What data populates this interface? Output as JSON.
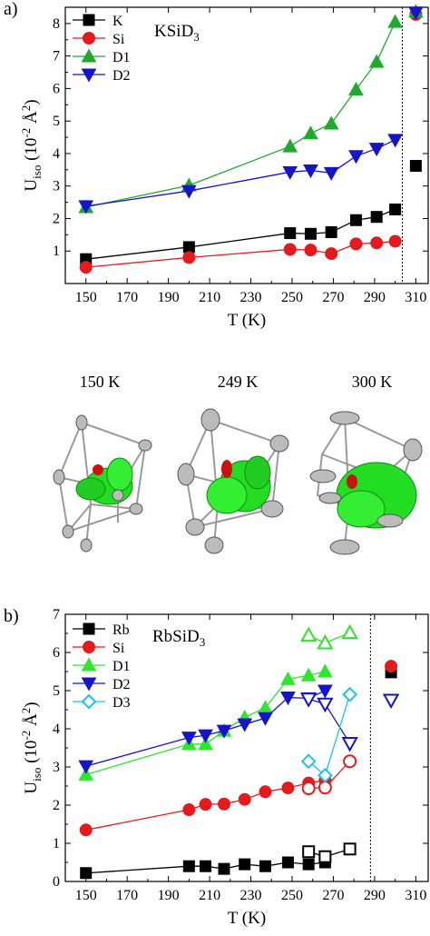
{
  "chart_data": [
    {
      "type": "line",
      "panel_label": "a)",
      "compound_label": "KSiD",
      "compound_sub": "3",
      "xlabel": "T (K)",
      "ylabel_main": "U",
      "ylabel_sub": "iso",
      "ylabel_paren": " (10",
      "ylabel_exp": "-2",
      "ylabel_unit": " Å",
      "ylabel_unit_exp": "2",
      "ylabel_close": ")",
      "xticks": [
        "150",
        "170",
        "190",
        "210",
        "230",
        "250",
        "270",
        "290",
        "310"
      ],
      "yticks": [
        "1",
        "2",
        "3",
        "4",
        "5",
        "6",
        "7",
        "8"
      ],
      "xlim": [
        140,
        316
      ],
      "ylim": [
        0,
        8.5
      ],
      "vline_x": 303.5,
      "grid": false,
      "legend_position": "top-left",
      "series": [
        {
          "name": "K",
          "color": "#000000",
          "marker": "square",
          "filled": true,
          "x": [
            150,
            200,
            249,
            259,
            269,
            281,
            291,
            300
          ],
          "y": [
            0.75,
            1.12,
            1.55,
            1.53,
            1.58,
            1.95,
            2.05,
            2.28
          ],
          "extra": [
            {
              "x": 310,
              "y": 3.62
            }
          ]
        },
        {
          "name": "Si",
          "color": "#e41a1c",
          "marker": "circle",
          "filled": true,
          "x": [
            150,
            200,
            249,
            259,
            269,
            281,
            291,
            300
          ],
          "y": [
            0.5,
            0.8,
            1.05,
            1.03,
            0.92,
            1.22,
            1.25,
            1.3
          ],
          "extra": [
            {
              "x": 310,
              "y": 8.28
            }
          ]
        },
        {
          "name": "D1",
          "color": "#1faa2e",
          "marker": "triangle-up",
          "filled": true,
          "x": [
            150,
            200,
            249,
            259,
            269,
            281,
            291,
            300
          ],
          "y": [
            2.35,
            3.02,
            4.22,
            4.62,
            4.92,
            5.97,
            6.82,
            8.05
          ],
          "extra": [
            {
              "x": 310,
              "y": 8.36
            }
          ]
        },
        {
          "name": "D2",
          "color": "#1414c8",
          "marker": "triangle-down",
          "filled": true,
          "x": [
            150,
            200,
            249,
            259,
            269,
            281,
            291,
            300
          ],
          "y": [
            2.38,
            2.85,
            3.43,
            3.48,
            3.4,
            3.92,
            4.15,
            4.42
          ],
          "extra": [
            {
              "x": 310,
              "y": 8.34
            }
          ]
        }
      ]
    },
    {
      "type": "line",
      "panel_label": "b)",
      "compound_label": "RbSiD",
      "compound_sub": "3",
      "xlabel": "T (K)",
      "ylabel_main": "U",
      "ylabel_sub": "iso",
      "ylabel_paren": " (10",
      "ylabel_exp": "-2",
      "ylabel_unit": " Å",
      "ylabel_unit_exp": "2",
      "ylabel_close": ")",
      "xticks": [
        "150",
        "170",
        "190",
        "210",
        "230",
        "250",
        "270",
        "290",
        "310"
      ],
      "yticks": [
        "0",
        "1",
        "2",
        "3",
        "4",
        "5",
        "6",
        "7"
      ],
      "xlim": [
        140,
        316
      ],
      "ylim": [
        0,
        7
      ],
      "vline_x": 288,
      "grid": false,
      "legend_position": "top-left",
      "series": [
        {
          "name": "Rb",
          "color": "#000000",
          "marker": "square",
          "filled": true,
          "x": [
            150,
            200,
            208,
            217,
            227,
            237,
            248,
            258,
            266
          ],
          "y": [
            0.22,
            0.4,
            0.4,
            0.33,
            0.45,
            0.4,
            0.5,
            0.45,
            0.5
          ],
          "open_x": [
            258,
            266,
            278
          ],
          "open_y": [
            0.78,
            0.65,
            0.85
          ],
          "extra": [
            {
              "x": 298,
              "y": 5.48
            }
          ]
        },
        {
          "name": "Si",
          "color": "#e41a1c",
          "marker": "circle",
          "filled": true,
          "x": [
            150,
            200,
            208,
            217,
            227,
            237,
            248,
            258,
            266
          ],
          "y": [
            1.35,
            1.88,
            2.02,
            2.03,
            2.15,
            2.35,
            2.45,
            2.58,
            2.65
          ],
          "open_x": [
            258,
            266,
            278
          ],
          "open_y": [
            2.44,
            2.46,
            3.15
          ],
          "extra": [
            {
              "x": 298,
              "y": 5.64
            }
          ]
        },
        {
          "name": "D1",
          "color": "#2ee62e",
          "marker": "triangle-up",
          "filled": true,
          "x": [
            150,
            200,
            208,
            217,
            227,
            237,
            248,
            258,
            266
          ],
          "y": [
            2.8,
            3.6,
            3.6,
            3.95,
            4.3,
            4.55,
            5.3,
            5.4,
            5.5
          ],
          "open_x": [
            258,
            266,
            278
          ],
          "open_y": [
            6.45,
            6.25,
            6.52
          ],
          "extra": []
        },
        {
          "name": "D2",
          "color": "#1414c8",
          "marker": "triangle-down",
          "filled": true,
          "x": [
            150,
            200,
            208,
            217,
            227,
            237,
            248,
            258,
            266
          ],
          "y": [
            3.02,
            3.77,
            3.83,
            3.95,
            4.12,
            4.28,
            4.82,
            4.8,
            5.0
          ],
          "open_x": [
            258,
            266,
            278
          ],
          "open_y": [
            4.78,
            4.65,
            3.62
          ],
          "extra": [
            {
              "x": 298,
              "y": 4.75,
              "open": true
            }
          ]
        },
        {
          "name": "D3",
          "color": "#14c8e6",
          "marker": "diamond",
          "filled": false,
          "x": [],
          "y": [],
          "open_x": [
            258,
            266,
            278
          ],
          "open_y": [
            3.15,
            2.78,
            4.9
          ],
          "extra": []
        }
      ]
    }
  ],
  "middle": {
    "labels": [
      "150 K",
      "249 K",
      "300 K"
    ]
  }
}
